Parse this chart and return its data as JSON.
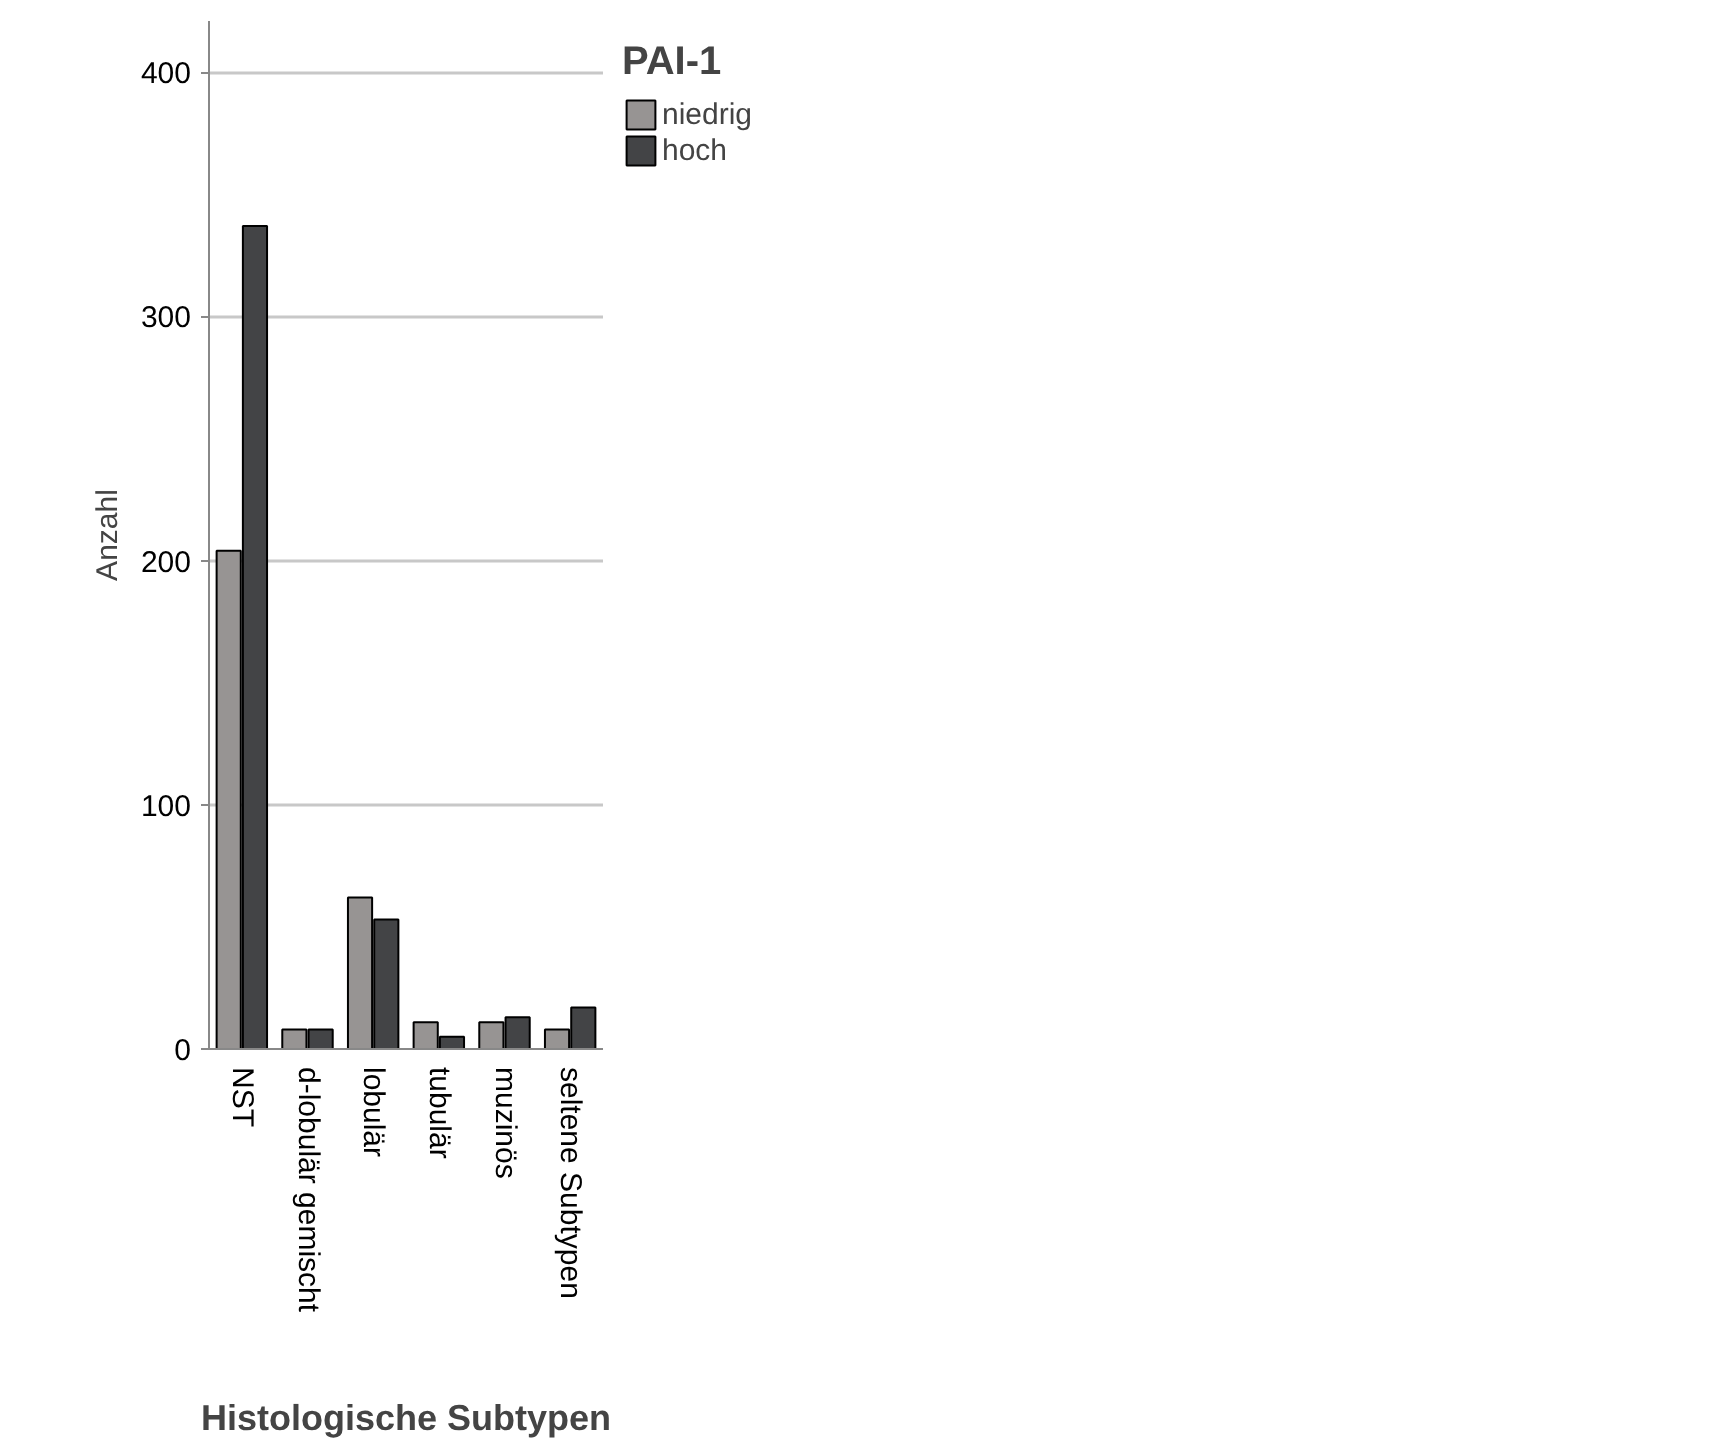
{
  "chart_data": {
    "type": "bar",
    "xlabel": "Histologische Subtypen",
    "ylabel": "Anzahl",
    "legend_title": "PAI-1",
    "categories": [
      "NST",
      "d-lobulär gemischt",
      "lobulär",
      "tubulär",
      "muzinös",
      "seltene Subtypen"
    ],
    "series": [
      {
        "name": "niedrig",
        "color": "#979493",
        "values": [
          204,
          8,
          62,
          11,
          11,
          8
        ]
      },
      {
        "name": "hoch",
        "color": "#434446",
        "values": [
          337,
          8,
          53,
          5,
          13,
          17
        ]
      }
    ],
    "ylim": [
      0,
      421
    ],
    "yticks": [
      0,
      100,
      200,
      300,
      400
    ],
    "grid": "y",
    "legend": "top right"
  }
}
